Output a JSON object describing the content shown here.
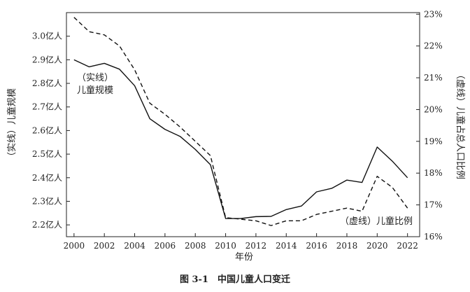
{
  "chart_data": {
    "type": "line",
    "x": [
      2000,
      2001,
      2002,
      2003,
      2004,
      2005,
      2006,
      2007,
      2008,
      2009,
      2010,
      2011,
      2012,
      2013,
      2014,
      2015,
      2016,
      2017,
      2018,
      2019,
      2020,
      2021,
      2022
    ],
    "series": [
      {
        "annotation": [
          "（实线）",
          "儿童规模"
        ],
        "axis": "left",
        "style": "solid",
        "values": [
          2.9,
          2.87,
          2.885,
          2.86,
          2.79,
          2.65,
          2.605,
          2.575,
          2.52,
          2.455,
          2.227,
          2.227,
          2.235,
          2.236,
          2.265,
          2.28,
          2.34,
          2.355,
          2.39,
          2.38,
          2.53,
          2.47,
          2.4
        ]
      },
      {
        "annotation": [
          "（虚线）儿童比例"
        ],
        "axis": "right",
        "style": "dashed",
        "values": [
          22.9,
          22.45,
          22.35,
          22.0,
          21.25,
          20.2,
          19.85,
          19.45,
          19.0,
          18.55,
          16.6,
          16.55,
          16.5,
          16.35,
          16.5,
          16.5,
          16.7,
          16.8,
          16.9,
          16.8,
          17.9,
          17.55,
          16.9
        ]
      }
    ],
    "xlabel": "年份",
    "xlim": [
      1999.5,
      2022.8
    ],
    "xticks": [
      2000,
      2002,
      2004,
      2006,
      2008,
      2010,
      2012,
      2014,
      2016,
      2018,
      2020,
      2022
    ],
    "ylabel": "（实线）儿童规模",
    "ylim": [
      2.15,
      3.1
    ],
    "yticks": [
      2.2,
      2.3,
      2.4,
      2.5,
      2.6,
      2.7,
      2.8,
      2.9,
      3.0
    ],
    "yticklabels": [
      "2.2亿人",
      "2.3亿人",
      "2.4亿人",
      "2.5亿人",
      "2.6亿人",
      "2.7亿人",
      "2.8亿人",
      "2.9亿人",
      "3.0亿人"
    ],
    "y2label": "（虚线）儿童占总人口比例",
    "y2lim": [
      16,
      23.05
    ],
    "y2ticks": [
      16,
      17,
      18,
      19,
      20,
      21,
      22,
      23
    ],
    "y2ticklabels": [
      "16%",
      "17%",
      "18%",
      "19%",
      "20%",
      "21%",
      "22%",
      "23%"
    ],
    "caption": "图 3-1　中国儿童人口变迁",
    "grid": false
  }
}
